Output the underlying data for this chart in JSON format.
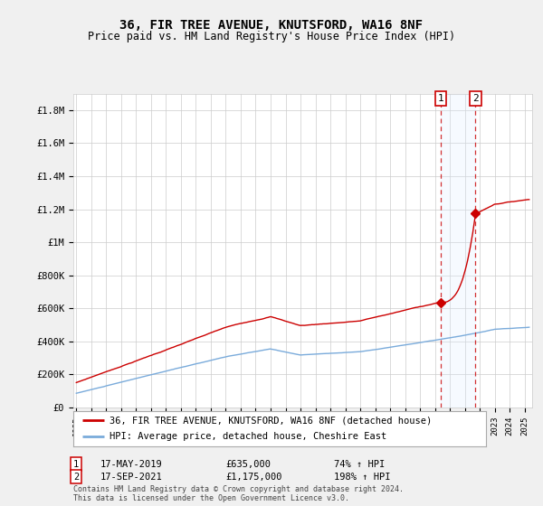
{
  "title": "36, FIR TREE AVENUE, KNUTSFORD, WA16 8NF",
  "subtitle": "Price paid vs. HM Land Registry's House Price Index (HPI)",
  "ylabel_ticks": [
    "£0",
    "£200K",
    "£400K",
    "£600K",
    "£800K",
    "£1M",
    "£1.2M",
    "£1.4M",
    "£1.6M",
    "£1.8M"
  ],
  "ytick_values": [
    0,
    200000,
    400000,
    600000,
    800000,
    1000000,
    1200000,
    1400000,
    1600000,
    1800000
  ],
  "ylim": [
    0,
    1900000
  ],
  "xlim_start": 1994.8,
  "xlim_end": 2025.5,
  "t1_x": 2019.37,
  "t1_price": 635000,
  "t2_x": 2021.71,
  "t2_price": 1175000,
  "legend_line1": "36, FIR TREE AVENUE, KNUTSFORD, WA16 8NF (detached house)",
  "legend_line2": "HPI: Average price, detached house, Cheshire East",
  "footnote1": "Contains HM Land Registry data © Crown copyright and database right 2024.",
  "footnote2": "This data is licensed under the Open Government Licence v3.0.",
  "red_color": "#cc0000",
  "blue_color": "#7aabdb",
  "shade_color": "#ddeeff",
  "background_color": "#f0f0f0",
  "plot_bg_color": "#ffffff",
  "grid_color": "#cccccc"
}
